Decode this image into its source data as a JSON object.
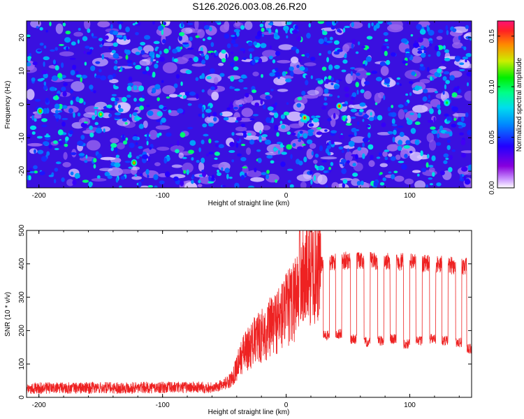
{
  "title": "S126.2026.003.08.26.R20",
  "colors": {
    "snr_line": "#ee2222",
    "axis": "#000000",
    "spectrogram_base": "#3a10e0"
  },
  "chart_data": [
    {
      "type": "heatmap",
      "title": "S126.2026.003.08.26.R20",
      "xlabel": "Height of straight line (km)",
      "ylabel": "Frequency (Hz)",
      "xlim": [
        -210,
        150
      ],
      "ylim": [
        -25,
        25
      ],
      "xticks": [
        -200,
        -100,
        0,
        100
      ],
      "yticks": [
        -20,
        -10,
        0,
        10,
        20
      ],
      "colorbar": {
        "label": "Normalized spectral amplitude",
        "range": [
          0,
          0.165
        ],
        "ticks": [
          0.0,
          0.05,
          0.1,
          0.15
        ],
        "tick_labels": [
          "0.00",
          "0.05",
          "0.10",
          "0.15"
        ],
        "colormap": [
          "#ffffff",
          "#cc99ff",
          "#8800dd",
          "#2200ff",
          "#0088ff",
          "#00ddee",
          "#00ff88",
          "#00ee00",
          "#ccee00",
          "#ff8800",
          "#ff2222",
          "#ff1177"
        ]
      },
      "notable_peaks": [
        {
          "x": -199,
          "y": -2,
          "value": 0.12
        },
        {
          "x": -150,
          "y": -3,
          "value": 0.11
        },
        {
          "x": -123,
          "y": -17.5,
          "value": 0.12
        },
        {
          "x": 15,
          "y": -4,
          "value": 0.13
        },
        {
          "x": 43,
          "y": -0.5,
          "value": 0.13
        },
        {
          "x": 130,
          "y": 0.5,
          "value": 0.09
        }
      ],
      "background_level": 0.03
    },
    {
      "type": "line",
      "title": "",
      "xlabel": "Height of straight line (km)",
      "ylabel": "SNR (10 * v/v)",
      "xlim": [
        -210,
        150
      ],
      "ylim": [
        0,
        500
      ],
      "xticks": [
        -200,
        -100,
        0,
        100
      ],
      "yticks": [
        0,
        100,
        200,
        300,
        400,
        500
      ],
      "series": [
        {
          "name": "SNR",
          "trend_x": [
            -210,
            -60,
            -45,
            -35,
            -25,
            -15,
            -5,
            5,
            10,
            20,
            30,
            50,
            100,
            150
          ],
          "trend_y": [
            22,
            25,
            50,
            130,
            170,
            200,
            240,
            280,
            340,
            380,
            400,
            410,
            405,
            390
          ],
          "dropouts": [
            {
              "from": 30,
              "to": 35,
              "level": 185
            },
            {
              "from": 40,
              "to": 45,
              "level": 190
            },
            {
              "from": 52,
              "to": 57,
              "level": 175
            },
            {
              "from": 63,
              "to": 68,
              "level": 165
            },
            {
              "from": 74,
              "to": 79,
              "level": 170
            },
            {
              "from": 84,
              "to": 89,
              "level": 175
            },
            {
              "from": 95,
              "to": 100,
              "level": 160
            },
            {
              "from": 105,
              "to": 110,
              "level": 170
            },
            {
              "from": 116,
              "to": 121,
              "level": 175
            },
            {
              "from": 126,
              "to": 131,
              "level": 170
            },
            {
              "from": 137,
              "to": 142,
              "level": 165
            },
            {
              "from": 146,
              "to": 150,
              "level": 145
            }
          ],
          "peak": {
            "x": 11,
            "y": 500
          }
        }
      ]
    }
  ]
}
